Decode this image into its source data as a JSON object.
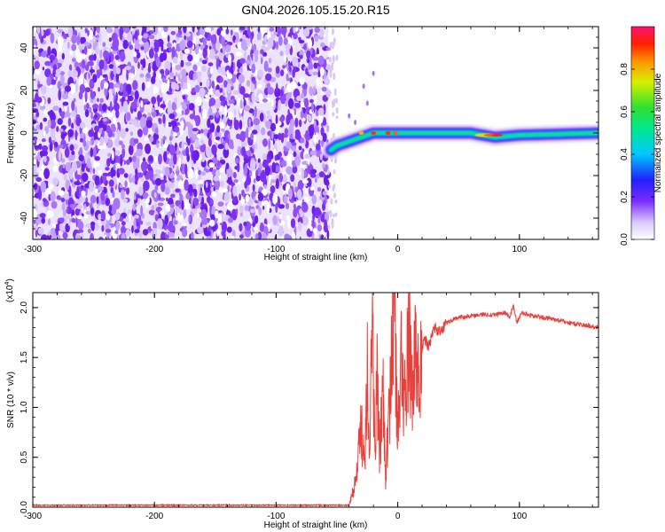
{
  "title": "GN04.2026.105.15.20.R15",
  "chart_data": [
    {
      "type": "heatmap",
      "xlabel": "Height of straight line (km)",
      "ylabel": "Frequency (Hz)",
      "xlim": [
        -300,
        165
      ],
      "ylim": [
        -50,
        50
      ],
      "xticks": [
        -300,
        -200,
        -100,
        0,
        100
      ],
      "yticks": [
        -40,
        -20,
        0,
        20,
        40
      ],
      "noise_region_x": [
        -300,
        -57
      ],
      "signal_track": [
        {
          "x": -55,
          "y": -8
        },
        {
          "x": -50,
          "y": -6
        },
        {
          "x": -40,
          "y": -4
        },
        {
          "x": -30,
          "y": -2
        },
        {
          "x": -20,
          "y": 0
        },
        {
          "x": -10,
          "y": 0
        },
        {
          "x": 0,
          "y": 0
        },
        {
          "x": 20,
          "y": 0
        },
        {
          "x": 60,
          "y": 0
        },
        {
          "x": 80,
          "y": -2
        },
        {
          "x": 100,
          "y": -1
        },
        {
          "x": 165,
          "y": 0
        }
      ],
      "colorbar": {
        "label": "Normalized spectral amplitude",
        "ticks": [
          0.0,
          0.2,
          0.4,
          0.6,
          0.8
        ],
        "range": [
          0,
          1
        ]
      }
    },
    {
      "type": "line",
      "xlabel": "Height of straight line (km)",
      "ylabel": "SNR (10 * v/v)",
      "multiplier": "(x10",
      "multiplier_exp": "4",
      "multiplier_close": ")",
      "xlim": [
        -300,
        165
      ],
      "ylim": [
        0,
        2.15
      ],
      "xticks": [
        -300,
        -200,
        -100,
        0,
        100
      ],
      "yticks": [
        0.0,
        0.5,
        1.0,
        1.5,
        2.0
      ],
      "color": "#e8413c",
      "series": [
        {
          "points": [
            [
              -300,
              0.02
            ],
            [
              -250,
              0.02
            ],
            [
              -200,
              0.02
            ],
            [
              -150,
              0.02
            ],
            [
              -100,
              0.02
            ],
            [
              -50,
              0.02
            ],
            [
              -40,
              0.02
            ],
            [
              -37,
              0.15
            ],
            [
              -34,
              0.3
            ],
            [
              -30,
              0.8
            ],
            [
              -27,
              0.5
            ],
            [
              -25,
              1.6
            ],
            [
              -23,
              0.4
            ],
            [
              -21,
              2.1
            ],
            [
              -19,
              0.6
            ],
            [
              -17,
              1.2
            ],
            [
              -15,
              0.5
            ],
            [
              -12,
              1.3
            ],
            [
              -10,
              0.3
            ],
            [
              -7,
              0.9
            ],
            [
              -5,
              1.7
            ],
            [
              -3,
              2.15
            ],
            [
              0,
              0.7
            ],
            [
              3,
              1.5
            ],
            [
              6,
              1.0
            ],
            [
              9,
              1.7
            ],
            [
              12,
              1.2
            ],
            [
              15,
              1.5
            ],
            [
              18,
              1.4
            ],
            [
              22,
              1.7
            ],
            [
              25,
              1.6
            ],
            [
              30,
              1.8
            ],
            [
              35,
              1.75
            ],
            [
              40,
              1.85
            ],
            [
              50,
              1.9
            ],
            [
              60,
              1.92
            ],
            [
              70,
              1.93
            ],
            [
              80,
              1.93
            ],
            [
              88,
              1.95
            ],
            [
              92,
              1.9
            ],
            [
              95,
              2.02
            ],
            [
              98,
              1.85
            ],
            [
              102,
              1.95
            ],
            [
              110,
              1.92
            ],
            [
              120,
              1.9
            ],
            [
              130,
              1.88
            ],
            [
              140,
              1.85
            ],
            [
              150,
              1.83
            ],
            [
              160,
              1.81
            ],
            [
              165,
              1.8
            ]
          ]
        }
      ]
    }
  ]
}
